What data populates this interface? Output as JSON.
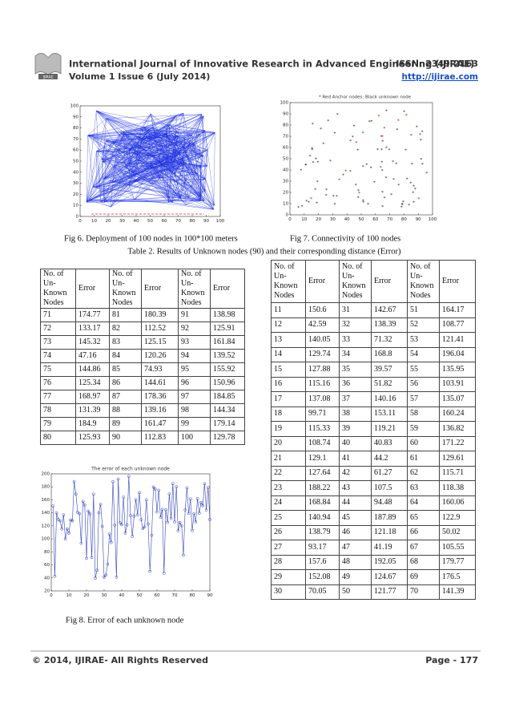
{
  "header": {
    "logo": "IJIRAE",
    "journal": "International Journal of Innovative Research in Advanced Engineering (IJIRAE)",
    "issn": "ISSN: 2349-2163",
    "volume": "Volume 1 Issue 6 (July 2014)",
    "url": "http://ijirae.com"
  },
  "fig6": {
    "caption": "Fig 6. Deployment of 100 nodes in 100*100 meters",
    "xlim": [
      0,
      100
    ],
    "ylim": [
      0,
      100
    ],
    "xticks": [
      0,
      10,
      20,
      30,
      40,
      50,
      60,
      70,
      80,
      90,
      100
    ],
    "yticks": [
      0,
      10,
      20,
      30,
      40,
      50,
      60,
      70,
      80,
      90,
      100
    ]
  },
  "fig7": {
    "caption": "Fig 7. Connectivity of 100 nodes",
    "legend": "* Red Anchor nodes: Black unknown node",
    "xlim": [
      0,
      100
    ],
    "ylim": [
      0,
      100
    ],
    "xticks": [
      0,
      10,
      20,
      30,
      40,
      50,
      60,
      70,
      80,
      90,
      100
    ],
    "yticks": [
      0,
      10,
      20,
      30,
      40,
      50,
      60,
      70,
      80,
      90,
      100
    ]
  },
  "table2": {
    "caption": "Table 2. Results of Unknown nodes (90) and their corresponding distance (Error)",
    "header": [
      "No. of Un- Known Nodes",
      "Error"
    ],
    "left_rows": [
      [
        71,
        174.77,
        81,
        180.39,
        91,
        138.98
      ],
      [
        72,
        133.17,
        82,
        112.52,
        92,
        125.91
      ],
      [
        73,
        145.32,
        83,
        125.15,
        93,
        161.84
      ],
      [
        74,
        47.16,
        84,
        120.26,
        94,
        139.52
      ],
      [
        75,
        144.86,
        85,
        74.93,
        95,
        155.92
      ],
      [
        76,
        125.34,
        86,
        144.61,
        96,
        150.96
      ],
      [
        77,
        168.97,
        87,
        178.36,
        97,
        184.85
      ],
      [
        78,
        131.39,
        88,
        139.16,
        98,
        144.34
      ],
      [
        79,
        184.9,
        89,
        161.47,
        99,
        179.14
      ],
      [
        80,
        125.93,
        90,
        112.83,
        100,
        129.78
      ]
    ],
    "right_rows": [
      [
        11,
        150.6,
        31,
        142.67,
        51,
        164.17
      ],
      [
        12,
        42.59,
        32,
        138.39,
        52,
        108.77
      ],
      [
        13,
        140.05,
        33,
        71.32,
        53,
        121.41
      ],
      [
        14,
        129.74,
        34,
        168.8,
        54,
        196.04
      ],
      [
        15,
        127.88,
        35,
        39.57,
        55,
        135.95
      ],
      [
        16,
        115.16,
        36,
        51.82,
        56,
        103.91
      ],
      [
        17,
        137.08,
        37,
        140.16,
        57,
        135.07
      ],
      [
        18,
        99.71,
        38,
        153.11,
        58,
        160.24
      ],
      [
        19,
        115.33,
        39,
        119.21,
        59,
        136.82
      ],
      [
        20,
        108.74,
        40,
        40.83,
        60,
        171.22
      ],
      [
        21,
        129.1,
        41,
        44.2,
        61,
        129.61
      ],
      [
        22,
        127.64,
        42,
        61.27,
        62,
        115.71
      ],
      [
        23,
        188.22,
        43,
        107.5,
        63,
        118.38
      ],
      [
        24,
        168.84,
        44,
        94.48,
        64,
        160.06
      ],
      [
        25,
        140.94,
        45,
        187.89,
        65,
        122.9
      ],
      [
        26,
        138.79,
        46,
        121.18,
        66,
        50.02
      ],
      [
        27,
        93.17,
        47,
        41.19,
        67,
        105.55
      ],
      [
        28,
        157.6,
        48,
        192.05,
        68,
        179.77
      ],
      [
        29,
        152.08,
        49,
        124.67,
        69,
        176.5
      ],
      [
        30,
        70.05,
        50,
        121.77,
        70,
        141.39
      ]
    ]
  },
  "fig8": {
    "title": "The error of each unknown node",
    "caption": "Fig 8. Error of each unknown node",
    "xlim": [
      0,
      90
    ],
    "ylim": [
      20,
      200
    ],
    "xticks": [
      0,
      10,
      20,
      30,
      40,
      50,
      60,
      70,
      80,
      90
    ],
    "yticks": [
      20,
      40,
      60,
      80,
      100,
      120,
      140,
      160,
      180,
      200
    ]
  },
  "footer": {
    "copyright": "© 2014, IJIRAE- All Rights Reserved",
    "page": "Page - 177"
  }
}
